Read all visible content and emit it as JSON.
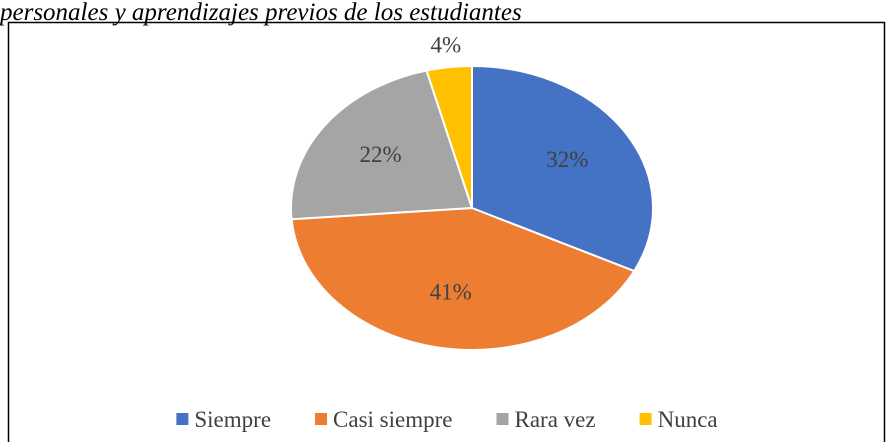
{
  "chart_data": {
    "type": "pie",
    "title": "personales y aprendizajes previos de los estudiantes",
    "categories": [
      "Siempre",
      "Casi siempre",
      "Rara vez",
      "Nunca"
    ],
    "values": [
      32,
      41,
      22,
      4
    ],
    "value_labels": [
      "32%",
      "41%",
      "22%",
      "4%"
    ],
    "colors": [
      "#4472c4",
      "#ed7d31",
      "#a5a5a5",
      "#ffc000"
    ],
    "legend": "bottom"
  }
}
